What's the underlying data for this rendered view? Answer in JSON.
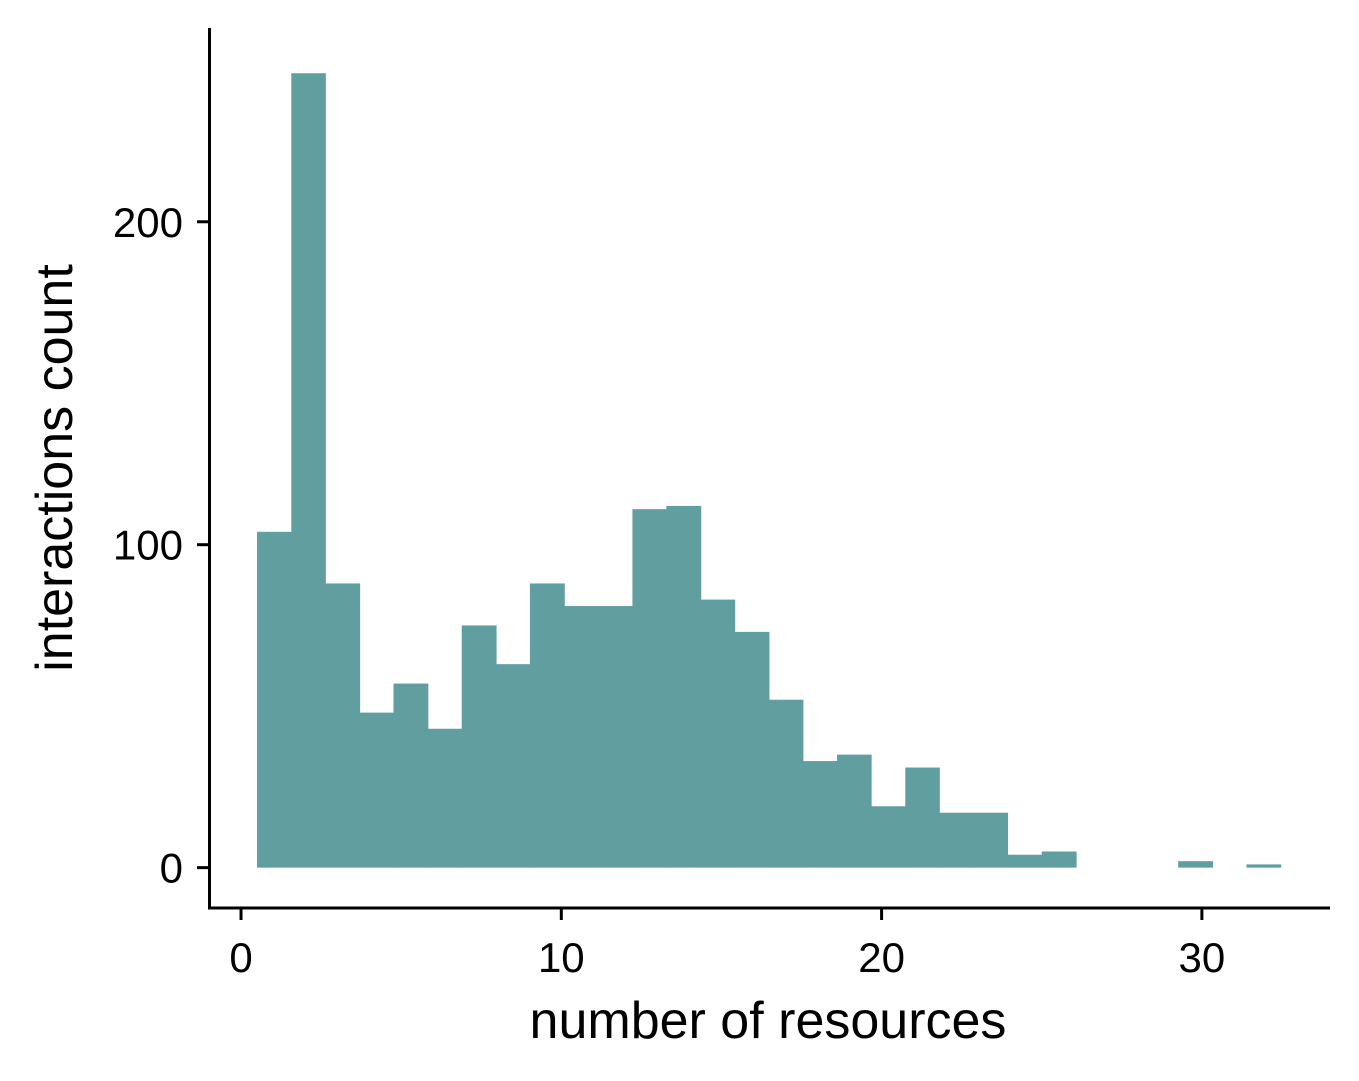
{
  "chart_data": {
    "type": "bar",
    "subtype": "histogram",
    "title": "",
    "xlabel": "number of resources",
    "ylabel": "interactions count",
    "xlim": [
      -1,
      34
    ],
    "ylim": [
      -12.5,
      260
    ],
    "x_ticks": [
      0,
      10,
      20,
      30
    ],
    "y_ticks": [
      0,
      100,
      200
    ],
    "grid": false,
    "legend": "none",
    "bar_color": "#619e9f",
    "bins": [
      {
        "x0": 0.5,
        "x1": 1.57,
        "count": 104
      },
      {
        "x0": 1.57,
        "x1": 2.63,
        "count": 246
      },
      {
        "x0": 2.63,
        "x1": 3.7,
        "count": 88
      },
      {
        "x0": 3.7,
        "x1": 4.76,
        "count": 48
      },
      {
        "x0": 4.76,
        "x1": 5.83,
        "count": 57
      },
      {
        "x0": 5.83,
        "x1": 6.89,
        "count": 43
      },
      {
        "x0": 6.89,
        "x1": 7.96,
        "count": 75
      },
      {
        "x0": 7.96,
        "x1": 9.02,
        "count": 63
      },
      {
        "x0": 9.02,
        "x1": 10.09,
        "count": 88
      },
      {
        "x0": 10.09,
        "x1": 11.15,
        "count": 81
      },
      {
        "x0": 11.15,
        "x1": 12.22,
        "count": 81
      },
      {
        "x0": 12.22,
        "x1": 13.28,
        "count": 111
      },
      {
        "x0": 13.28,
        "x1": 14.35,
        "count": 112
      },
      {
        "x0": 14.35,
        "x1": 15.41,
        "count": 83
      },
      {
        "x0": 15.41,
        "x1": 16.48,
        "count": 73
      },
      {
        "x0": 16.48,
        "x1": 17.54,
        "count": 52
      },
      {
        "x0": 17.54,
        "x1": 18.61,
        "count": 33
      },
      {
        "x0": 18.61,
        "x1": 19.67,
        "count": 35
      },
      {
        "x0": 19.67,
        "x1": 20.74,
        "count": 19
      },
      {
        "x0": 20.74,
        "x1": 21.8,
        "count": 31
      },
      {
        "x0": 21.8,
        "x1": 22.87,
        "count": 17
      },
      {
        "x0": 22.87,
        "x1": 23.93,
        "count": 17
      },
      {
        "x0": 23.93,
        "x1": 25.0,
        "count": 4
      },
      {
        "x0": 25.0,
        "x1": 26.07,
        "count": 5
      },
      {
        "x0": 26.07,
        "x1": 27.13,
        "count": 0
      },
      {
        "x0": 27.13,
        "x1": 28.2,
        "count": 0
      },
      {
        "x0": 28.2,
        "x1": 29.26,
        "count": 0
      },
      {
        "x0": 29.26,
        "x1": 30.33,
        "count": 2
      },
      {
        "x0": 30.33,
        "x1": 31.39,
        "count": 0
      },
      {
        "x0": 31.39,
        "x1": 32.46,
        "count": 1
      }
    ]
  }
}
